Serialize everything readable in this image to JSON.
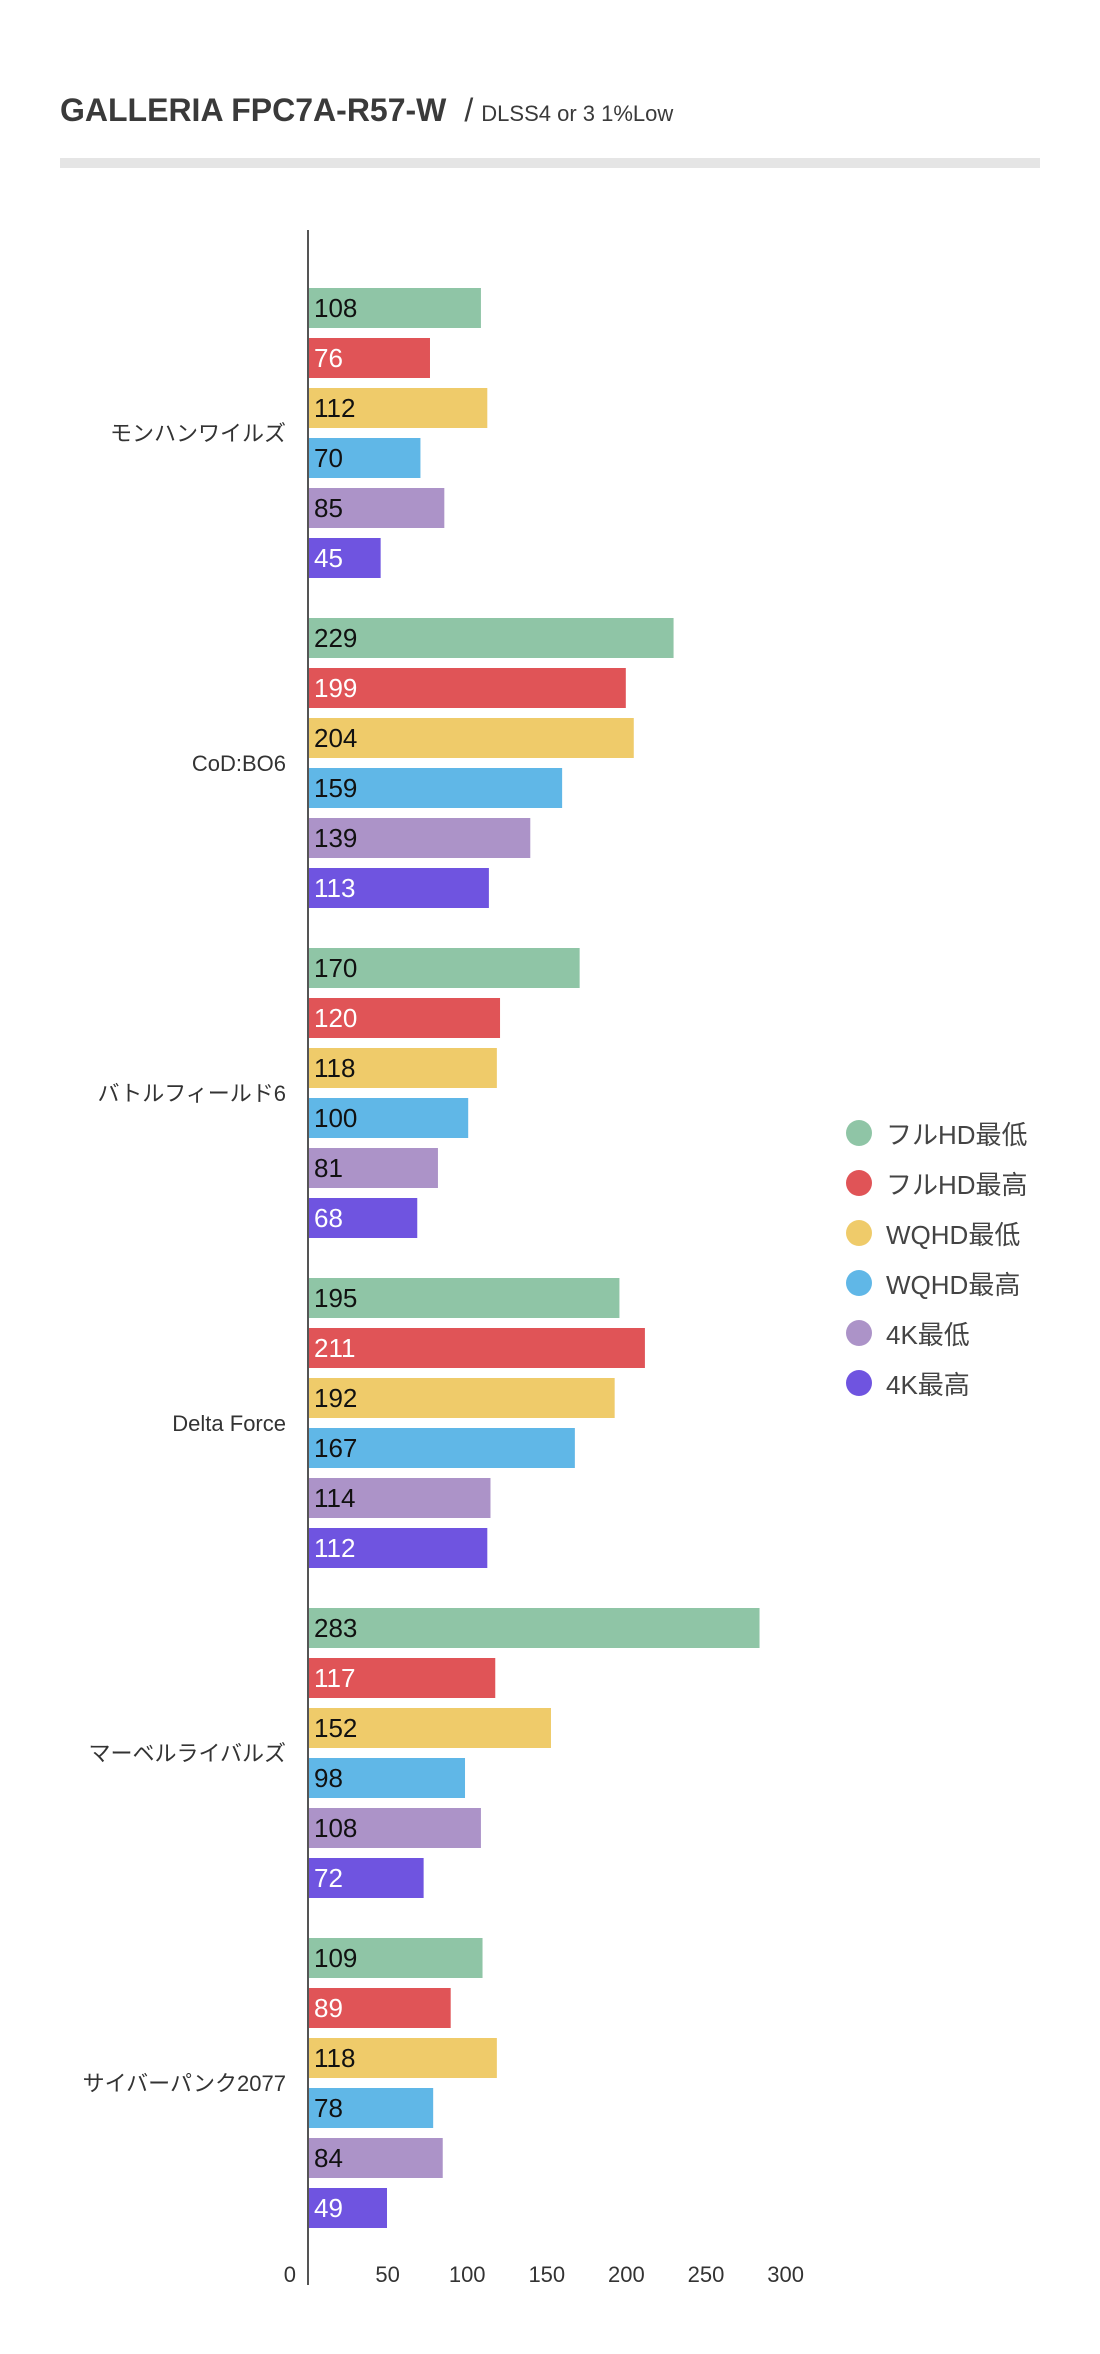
{
  "chart_data": {
    "type": "bar",
    "orientation": "horizontal",
    "title": "GALLERIA FPC7A-R57-W",
    "subtitle": "DLSS4 or 3 1%Low",
    "title_separator": "/",
    "categories": [
      "モンハンワイルズ",
      "CoD:BO6",
      "バトルフィールド6",
      "Delta Force",
      "マーベルライバルズ",
      "サイバーパンク2077"
    ],
    "series": [
      {
        "name": "フルHD最低",
        "color": "#8fc5a6",
        "label_color": "#111111",
        "values": [
          108,
          229,
          170,
          195,
          283,
          109
        ]
      },
      {
        "name": "フルHD最高",
        "color": "#e05457",
        "label_color": "#ffffff",
        "values": [
          76,
          199,
          120,
          211,
          117,
          89
        ]
      },
      {
        "name": "WQHD最低",
        "color": "#efcb6a",
        "label_color": "#111111",
        "values": [
          112,
          204,
          118,
          192,
          152,
          118
        ]
      },
      {
        "name": "WQHD最高",
        "color": "#60b7e7",
        "label_color": "#111111",
        "values": [
          70,
          159,
          100,
          167,
          98,
          78
        ]
      },
      {
        "name": "4K最低",
        "color": "#ac93c8",
        "label_color": "#111111",
        "values": [
          85,
          139,
          81,
          114,
          108,
          84
        ]
      },
      {
        "name": "4K最高",
        "color": "#6f54e0",
        "label_color": "#ffffff",
        "values": [
          45,
          113,
          68,
          112,
          72,
          49
        ]
      }
    ],
    "xlim": [
      0,
      300
    ],
    "xticks": [
      "0",
      "50",
      "100",
      "150",
      "200",
      "250",
      "300"
    ],
    "xlabel": "",
    "ylabel": "",
    "grid": false,
    "legend_position": "right"
  }
}
